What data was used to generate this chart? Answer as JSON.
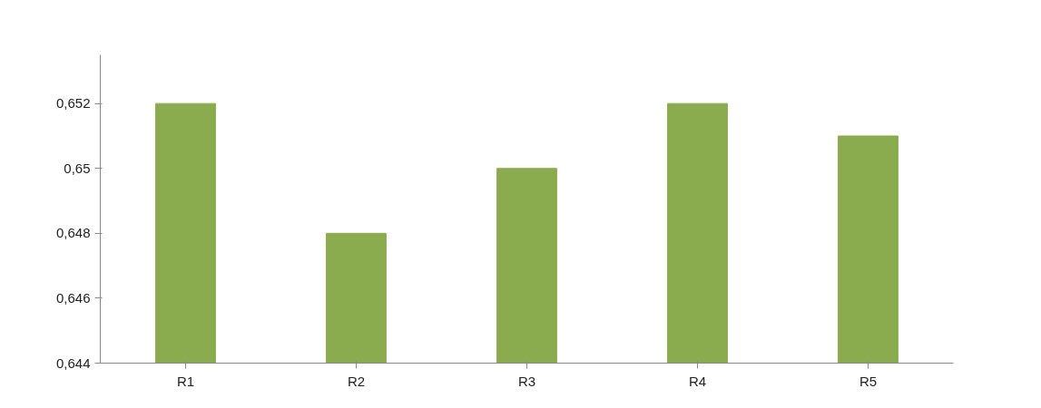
{
  "chart_data": {
    "type": "bar",
    "categories": [
      "R1",
      "R2",
      "R3",
      "R4",
      "R5"
    ],
    "values": [
      0.652,
      0.648,
      0.65,
      0.652,
      0.651
    ],
    "color": "#8aab4e",
    "ylim": [
      0.644,
      0.6535
    ],
    "yticks": [
      {
        "value": 0.644,
        "label": "0,644"
      },
      {
        "value": 0.646,
        "label": "0,646"
      },
      {
        "value": 0.648,
        "label": "0,648"
      },
      {
        "value": 0.65,
        "label": "0,65"
      },
      {
        "value": 0.652,
        "label": "0,652"
      }
    ],
    "grid": false
  }
}
